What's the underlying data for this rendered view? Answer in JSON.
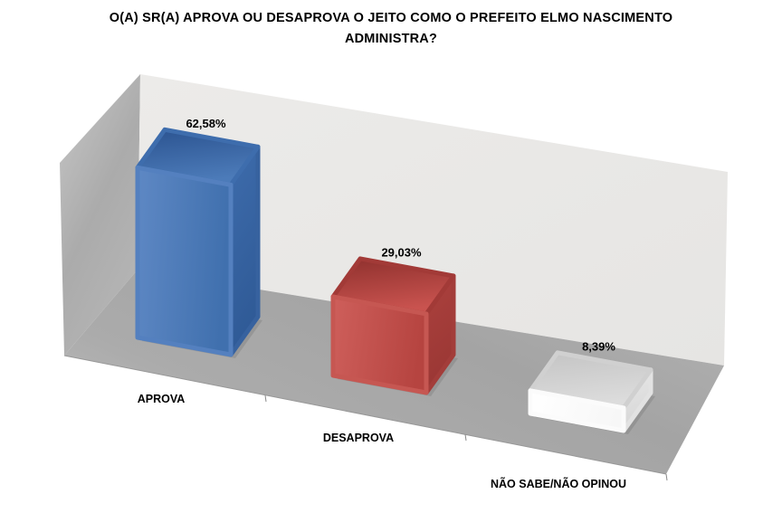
{
  "title": "O(A) SR(A) APROVA OU DESAPROVA O JEITO COMO O PREFEITO ELMO NASCIMENTO ADMINISTRA?",
  "chart_data": {
    "type": "bar",
    "projection": "3d",
    "title": "O(A) SR(A) APROVA OU DESAPROVA O JEITO COMO O PREFEITO ELMO NASCIMENTO ADMINISTRA?",
    "categories": [
      "APROVA",
      "DESAPROVA",
      "NÃO SABE/NÃO OPINOU"
    ],
    "values": [
      62.58,
      29.03,
      8.39
    ],
    "value_labels": [
      "62,58%",
      "29,03%",
      "8,39%"
    ],
    "unit": "%",
    "value_axis_visible": false,
    "grid": false,
    "legend": "none",
    "bars": [
      {
        "label": "APROVA",
        "value": 62.58,
        "value_label": "62,58%",
        "colors": {
          "base": "#4472B4",
          "front": [
            "#5E88C4",
            "#4070AE"
          ],
          "top": [
            "#2B5390",
            "#4C7BB9"
          ],
          "side": [
            "#3E6CAC",
            "#2F5A96"
          ],
          "edge_front": "#5480BF",
          "edge_top": "#3E6DAD",
          "edge_side": "#37629F"
        }
      },
      {
        "label": "DESAPROVA",
        "value": 29.03,
        "value_label": "29,03%",
        "colors": {
          "base": "#BE4B47",
          "front": [
            "#CE5F5B",
            "#B64440"
          ],
          "top": [
            "#8E302D",
            "#C9534F"
          ],
          "side": [
            "#AC413E",
            "#9A3734"
          ],
          "edge_front": "#C65752",
          "edge_top": "#A23A37",
          "edge_side": "#A33D3A"
        }
      },
      {
        "label": "NÃO SABE/NÃO OPINOU",
        "value": 8.39,
        "value_label": "8,39%",
        "colors": {
          "base": "#FFFFFF",
          "front": [
            "#FFFFFF",
            "#F7F7F7"
          ],
          "top": [
            "#C4C4C4",
            "#DCDCDC"
          ],
          "side": [
            "#E8E8E8",
            "#D6D6D6"
          ],
          "edge_front": "#FBFBFB",
          "edge_top": "#D0D0D0",
          "edge_side": "#E2E2E2"
        }
      }
    ]
  }
}
